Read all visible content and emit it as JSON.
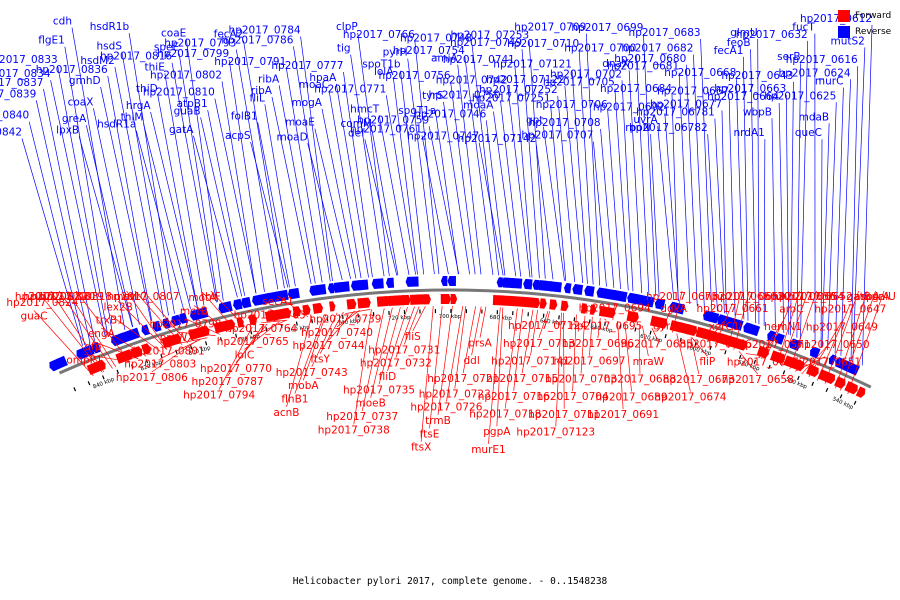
{
  "caption": "Helicobacter pylori 2017, complete genome. - 0..1548238",
  "colors": {
    "forward": "#ff0000",
    "reverse": "#0000ff",
    "backbone": "#777777",
    "tick": "#000000"
  },
  "legend": [
    {
      "label": "Forward",
      "color": "#ff0000"
    },
    {
      "label": "Reverse",
      "color": "#0000ff"
    }
  ],
  "ticks": [
    "540 kbp",
    "560 kbp",
    "580 kbp",
    "600 kbp",
    "620 kbp",
    "640 kbp",
    "660 kbp",
    "680 kbp",
    "700 kbp",
    "720 kbp",
    "740 kbp",
    "760 kbp",
    "780 kbp",
    "800 kbp",
    "820 kbp",
    "840 kbp"
  ],
  "reverse_labels": [
    "hp2017_0612",
    "mutS2",
    "hp2017_0616",
    "hp2017_0624",
    "murC",
    "hp2017_0625",
    "mdaB",
    "queC",
    "fucT",
    "hp2017_0632",
    "serB",
    "hp2017_0643",
    "hp2017_0663",
    "hp2017_0664",
    "wbpB",
    "nrdA1",
    "glmU",
    "feoB",
    "fecA1",
    "hp2017_0668",
    "hp2017_0667",
    "hp2017_0677",
    "hp2017_06781",
    "hp2017_06782",
    "hp2017_0683",
    "hp2017_0682",
    "hp2017_0680",
    "hp2017_0681",
    "hp2017_0684",
    "hp2017_0692",
    "uvrA",
    "rpoN",
    "hp2017_0699",
    "hp2017_0700",
    "dnaX",
    "hp2017_0702",
    "hp2017_0705",
    "hp2017_0706",
    "hp2017_0708",
    "hp2017_0707",
    "hp2017_0709",
    "hp2017_0710",
    "hp2017_07121",
    "hp2017_07122",
    "hp2017_07252",
    "hp2017_07251",
    "gpt",
    "hp2017_07142",
    "hp2017_07253",
    "hp2017_0749",
    "hp2017_0741",
    "hp2017_0742",
    "hp2017_0750",
    "moaA",
    "hp2017_0746",
    "hp2017_0747",
    "hp2017_0748",
    "hp2017_0754",
    "amiA",
    "hp2017_0756",
    "tyrS",
    "spoT1a",
    "hp2017_0759",
    "hp2017_0761",
    "hp2017_0766",
    "pyrH",
    "spoT1b",
    "lolA",
    "hp2017_0771",
    "hmcT",
    "comM",
    "def",
    "clpP",
    "tig",
    "hp2017_0777",
    "hpaA",
    "moaC",
    "mogA",
    "moaE",
    "moaD",
    "hp2017_0784",
    "hp2017_0786",
    "hp2017_0791",
    "ribA",
    "ribA",
    "fliL",
    "folB1",
    "acpS",
    "fecA2",
    "hp2017_0793",
    "hp2017_0799",
    "hp2017_0802",
    "hp2017_0810",
    "atpB1",
    "guaB",
    "gatA",
    "coaE",
    "speE",
    "hp2017_0816",
    "thiE",
    "thiD",
    "hrgA",
    "thiM",
    "hsdR1a",
    "hsdR1b",
    "hsdS",
    "hsdM2",
    "hp2017_0836",
    "gmhD",
    "coaX",
    "greA",
    "lpxB",
    "cdh",
    "flgE1",
    "hp2017_0833",
    "hp2017_0834",
    "hp2017_0837",
    "hp2017_0839",
    "hp2017_0840",
    "hp2017_0842"
  ],
  "forward_labels": [
    "galU",
    "murA",
    "aspA",
    "gatB",
    "hp2017_0647",
    "hp2017_0649",
    "hp2017_0650",
    "hp2017_0651",
    "hp2017_0652",
    "hp2017_0654",
    "hp2017_0656",
    "aroC",
    "hemN1",
    "hp2017_0571",
    "hp2017_06572",
    "hp2017_0658",
    "hp2017_0659",
    "hp2017_0660",
    "hp2017_0661",
    "xerC1",
    "hp2017_0676",
    "fliP",
    "hp2017_0673",
    "hp2017_0674",
    "hp2017_0675",
    "dgkA",
    "gyrA",
    "hp2017_0685",
    "mraW",
    "hp2017_0688",
    "hp2017_0689",
    "hp2017_0691",
    "hp2017_0694",
    "hp2017_0695",
    "hp2017_0696",
    "hp2017_0697",
    "hp2017_0703",
    "hp2017_0704",
    "hp2017_0711",
    "hp2017_07123",
    "hp2017_07124",
    "hp2017_0713",
    "hp2017_07141",
    "hp2017_0715",
    "hp2017_0716",
    "hp2017_0718",
    "pgpA",
    "murE1",
    "prsA",
    "ddl",
    "hp2017_0721",
    "hp2017_0723",
    "hp2017_0726",
    "trmB",
    "ftsE",
    "ftsX",
    "fliS",
    "hp2017_0731",
    "hp2017_0732",
    "fliD",
    "hp2017_0735",
    "moeB",
    "hp2017_0737",
    "hp2017_0738",
    "hp2017_0739",
    "hp2017_0740",
    "hp2017_0744",
    "ftsY",
    "hp2017_0743",
    "mobA",
    "flhB1",
    "acnB",
    "secA1",
    "hp2017_0763",
    "hp2017_0764",
    "hp2017_0765",
    "lolC",
    "hp2017_0770",
    "hp2017_0787",
    "hp2017_0794",
    "thiF",
    "motA",
    "motB",
    "hp2017_0798",
    "proWX",
    "hp2017_0801",
    "hp2017_0803",
    "hp2017_0806",
    "hp2017_0807",
    "uvrC",
    "metL",
    "lex2B",
    "trxB1",
    "engA",
    "dfp",
    "ompP1",
    "hp2017_0818",
    "hp2017_0819",
    "hp2017_0820",
    "hp2017_0822",
    "hp2017_0824",
    "guaC"
  ]
}
